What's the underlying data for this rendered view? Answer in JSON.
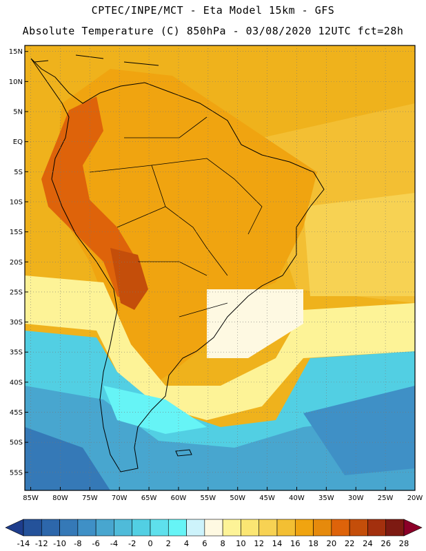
{
  "header": {
    "line1": "CPTEC/INPE/MCT -  Eta Model 15km - GFS",
    "line2": "Absolute Temperature (C) 850hPa - 03/08/2020 12UTC fct=28h"
  },
  "map": {
    "lon_range": [
      -86,
      -20
    ],
    "lat_range": [
      -58,
      16
    ],
    "grid_lines": "dotted",
    "lat_labels": [
      "15N",
      "10N",
      "5N",
      "EQ",
      "5S",
      "10S",
      "15S",
      "20S",
      "25S",
      "30S",
      "35S",
      "40S",
      "45S",
      "50S",
      "55S"
    ],
    "lat_values": [
      15,
      10,
      5,
      0,
      -5,
      -10,
      -15,
      -20,
      -25,
      -30,
      -35,
      -40,
      -45,
      -50,
      -55
    ],
    "lon_labels": [
      "85W",
      "80W",
      "75W",
      "70W",
      "65W",
      "60W",
      "55W",
      "50W",
      "45W",
      "40W",
      "35W",
      "30W",
      "25W",
      "20W"
    ],
    "lon_values": [
      -85,
      -80,
      -75,
      -70,
      -65,
      -60,
      -55,
      -50,
      -45,
      -40,
      -35,
      -30,
      -25,
      -20
    ]
  },
  "colorbar": {
    "labels": [
      "-14",
      "-12",
      "-10",
      "-8",
      "-6",
      "-4",
      "-2",
      "0",
      "2",
      "4",
      "6",
      "8",
      "10",
      "12",
      "14",
      "16",
      "18",
      "20",
      "22",
      "24",
      "26",
      "28"
    ],
    "colors": [
      "#1e3d8c",
      "#24529a",
      "#2d67ab",
      "#3579b7",
      "#3f90c6",
      "#48a6cf",
      "#4fbbd9",
      "#52cfe3",
      "#5ee0ec",
      "#66f4f6",
      "#cdf3fb",
      "#fef9e2",
      "#fdf397",
      "#fbe673",
      "#f7d253",
      "#f3bf33",
      "#f0a410",
      "#e68a0c",
      "#de630a",
      "#c44e0a",
      "#a3300e",
      "#7d1a12",
      "#8b0028"
    ]
  },
  "fields": {
    "ocean_north": "#efb21c",
    "land_warm": "#f0a410",
    "andes_hot": "#de630a",
    "south_cold": "#4fcfe3",
    "far_south": "#3f90c6"
  }
}
